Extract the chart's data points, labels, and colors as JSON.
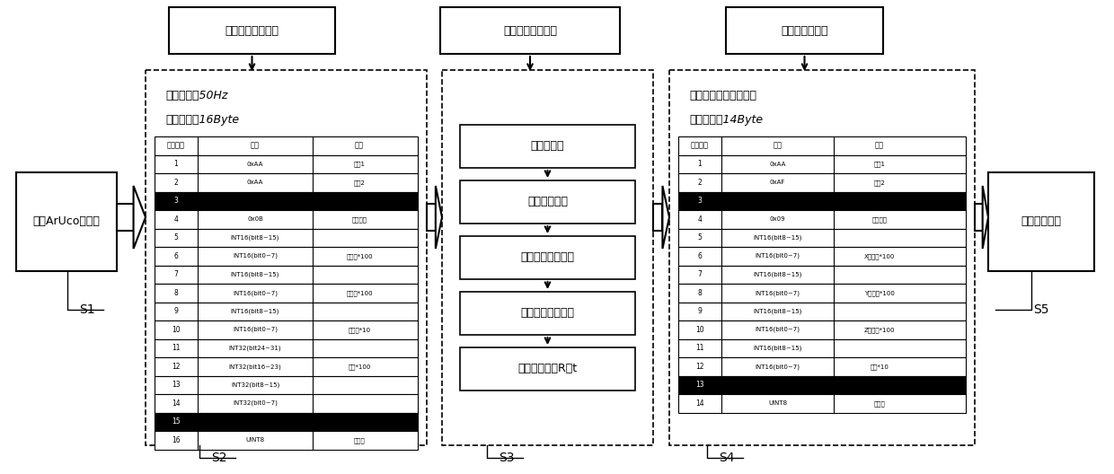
{
  "bg_color": "#ffffff",
  "box1_label": "生成ArUco标志板",
  "top_box1_label": "接收解析飞控指令",
  "top_box2_label": "执行视觉降落算法",
  "top_box3_label": "发送结果至飞控",
  "box2_info1": "数据频率：50Hz",
  "box2_info2": "字节总数：16Byte",
  "box4_info1": "数据频率：同视频帧率",
  "box4_info2": "字节总数：14Byte",
  "box5_label": "飞控动作响应",
  "flow_steps": [
    "读取视频帧",
    "读取相机参数",
    "调用检测标志函数",
    "调用位姿估算函数",
    "位姿求逆得到R和t"
  ],
  "table2_rows": [
    [
      "1",
      "0xAA",
      "帧头1"
    ],
    [
      "2",
      "0xAA",
      "帧头2"
    ],
    [
      "3",
      "",
      ""
    ],
    [
      "4",
      "0x0B",
      "数据长度"
    ],
    [
      "5",
      "INT16(bit8~15)",
      ""
    ],
    [
      "6",
      "INT16(bit0~7)",
      "横滚角*100"
    ],
    [
      "7",
      "INT16(bit8~15)",
      ""
    ],
    [
      "8",
      "INT16(bit0~7)",
      "俯仰角*100"
    ],
    [
      "9",
      "INT16(bit8~15)",
      ""
    ],
    [
      "10",
      "INT16(bit0~7)",
      "偏航角*10"
    ],
    [
      "11",
      "INT32(bit24~31)",
      ""
    ],
    [
      "12",
      "INT32(bit16~23)",
      "高度*100"
    ],
    [
      "13",
      "INT32(bit8~15)",
      ""
    ],
    [
      "14",
      "INT32(bit0~7)",
      ""
    ],
    [
      "15",
      "",
      ""
    ],
    [
      "16",
      "UINT8",
      "和校验"
    ]
  ],
  "black_rows2": [
    3,
    15
  ],
  "table4_rows": [
    [
      "1",
      "0xAA",
      "帧头1"
    ],
    [
      "2",
      "0xAF",
      "帧头2"
    ],
    [
      "3",
      "",
      ""
    ],
    [
      "4",
      "0x09",
      "数据长度"
    ],
    [
      "5",
      "INT16(bit8~15)",
      ""
    ],
    [
      "6",
      "INT16(bit0~7)",
      "X偏移量*100"
    ],
    [
      "7",
      "INT16(bit8~15)",
      ""
    ],
    [
      "8",
      "INT16(bit0~7)",
      "Y偏移量*100"
    ],
    [
      "9",
      "INT16(bit8~15)",
      ""
    ],
    [
      "10",
      "INT16(bit0~7)",
      "Z偏移量*100"
    ],
    [
      "11",
      "INT16(bit8~15)",
      ""
    ],
    [
      "12",
      "INT16(bit0~7)",
      "偏航*10"
    ],
    [
      "13",
      "",
      ""
    ],
    [
      "14",
      "UINT8",
      "和校验"
    ]
  ],
  "black_rows4": [
    3,
    13
  ]
}
